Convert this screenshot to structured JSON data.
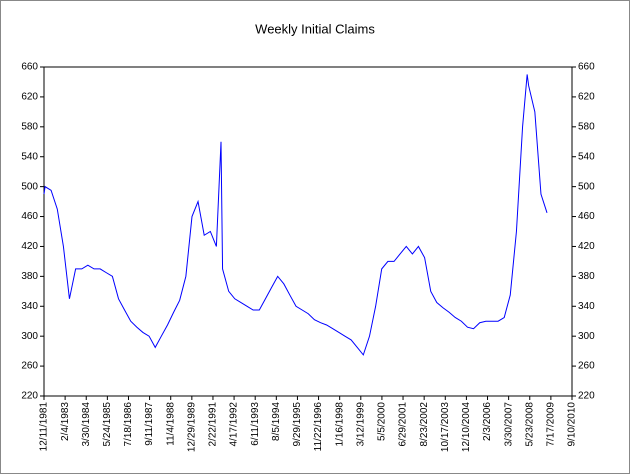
{
  "chart_data": {
    "type": "line",
    "title": "Weekly Initial Claims",
    "color": "#0000ff",
    "x": [
      "12/11/1981",
      "1/1/1982",
      "5/1/1982",
      "9/1/1982",
      "1/1/1983",
      "5/1/1983",
      "9/1/1983",
      "1/1/1984",
      "5/1/1984",
      "9/1/1984",
      "1/1/1985",
      "5/1/1985",
      "9/1/1985",
      "1/1/1986",
      "5/1/1986",
      "9/1/1986",
      "1/1/1987",
      "5/1/1987",
      "9/1/1987",
      "1/1/1988",
      "5/1/1988",
      "9/1/1988",
      "1/1/1989",
      "5/1/1989",
      "9/1/1989",
      "1/1/1990",
      "5/1/1990",
      "9/1/1990",
      "1/1/1991",
      "5/1/1991",
      "8/1/1991",
      "9/1/1991",
      "1/1/1992",
      "5/1/1992",
      "9/1/1992",
      "1/1/1993",
      "5/1/1993",
      "9/1/1993",
      "1/1/1994",
      "5/1/1994",
      "9/1/1994",
      "1/1/1995",
      "5/1/1995",
      "9/1/1995",
      "1/1/1996",
      "5/1/1996",
      "9/1/1996",
      "1/1/1997",
      "5/1/1997",
      "9/1/1997",
      "1/1/1998",
      "5/1/1998",
      "9/1/1998",
      "1/1/1999",
      "5/1/1999",
      "9/1/1999",
      "1/1/2000",
      "5/1/2000",
      "9/1/2000",
      "1/1/2001",
      "5/1/2001",
      "9/1/2001",
      "1/1/2002",
      "5/1/2002",
      "9/1/2002",
      "1/1/2003",
      "5/1/2003",
      "9/1/2003",
      "1/1/2004",
      "5/1/2004",
      "9/1/2004",
      "1/1/2005",
      "5/1/2005",
      "9/1/2005",
      "1/1/2006",
      "5/1/2006",
      "9/1/2006",
      "1/1/2007",
      "5/1/2007",
      "9/1/2007",
      "1/1/2008",
      "4/1/2008",
      "5/1/2008",
      "9/1/2008",
      "1/1/2009",
      "5/1/2009"
    ],
    "values": [
      490,
      500,
      495,
      470,
      420,
      350,
      390,
      390,
      395,
      390,
      390,
      385,
      380,
      350,
      335,
      320,
      312,
      305,
      300,
      285,
      300,
      315,
      332,
      348,
      380,
      460,
      480,
      435,
      440,
      420,
      560,
      390,
      360,
      350,
      345,
      340,
      335,
      335,
      350,
      365,
      380,
      370,
      355,
      340,
      335,
      330,
      322,
      318,
      315,
      310,
      305,
      300,
      295,
      285,
      275,
      300,
      340,
      390,
      400,
      400,
      410,
      420,
      410,
      420,
      405,
      360,
      345,
      338,
      332,
      325,
      320,
      312,
      310,
      318,
      320,
      320,
      320,
      325,
      355,
      440,
      580,
      650,
      635,
      600,
      490,
      465
    ],
    "xlim": [
      "12/11/1981",
      "9/10/2010"
    ],
    "xticks": [
      "12/11/1981",
      "2/4/1983",
      "3/30/1984",
      "5/24/1985",
      "7/18/1986",
      "9/11/1987",
      "11/4/1988",
      "12/29/1989",
      "2/22/1991",
      "4/17/1992",
      "6/11/1993",
      "8/5/1994",
      "9/29/1995",
      "11/22/1996",
      "1/16/1998",
      "3/12/1999",
      "5/5/2000",
      "6/29/2001",
      "8/23/2002",
      "10/17/2003",
      "12/10/2004",
      "2/3/2006",
      "3/30/2007",
      "5/23/2008",
      "7/17/2009",
      "9/10/2010"
    ],
    "ylim": [
      220,
      660
    ],
    "yticks": [
      220,
      260,
      300,
      340,
      380,
      420,
      460,
      500,
      540,
      580,
      620,
      660
    ],
    "y2lim": [
      220,
      660
    ],
    "y2ticks": [
      220,
      260,
      300,
      340,
      380,
      420,
      460,
      500,
      540,
      580,
      620,
      660
    ]
  }
}
